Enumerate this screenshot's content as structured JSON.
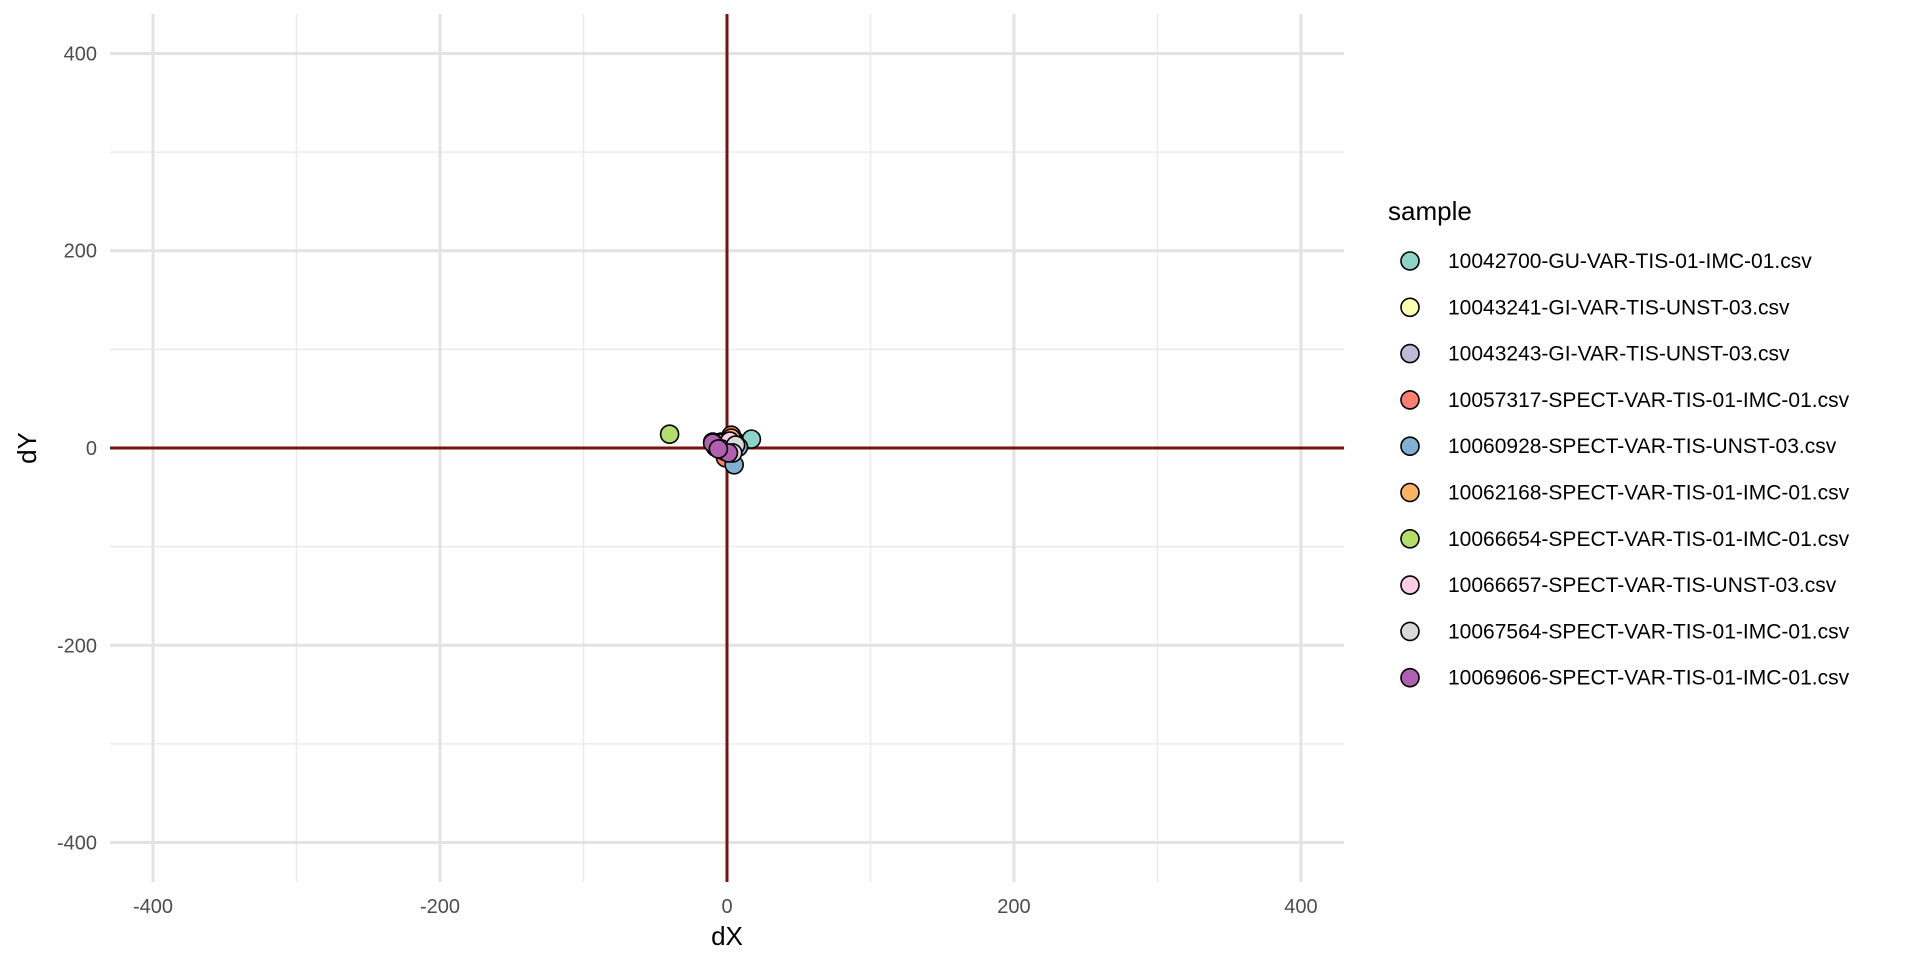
{
  "chart_data": {
    "type": "scatter",
    "title": "",
    "xlabel": "dX",
    "ylabel": "dY",
    "xlim": [
      -430,
      430
    ],
    "ylim": [
      -440,
      440
    ],
    "x_ticks": [
      -400,
      -200,
      0,
      200,
      400
    ],
    "y_ticks": [
      -400,
      -200,
      0,
      200,
      400
    ],
    "x_tick_labels": [
      "-400",
      "-200",
      "0",
      "200",
      "400"
    ],
    "y_tick_labels": [
      "-400",
      "-200",
      "0",
      "200",
      "400"
    ],
    "grid": true,
    "reference_lines": {
      "x": 0,
      "y": 0,
      "color": "#7b1010"
    },
    "legend": {
      "title": "sample",
      "position": "right"
    },
    "series": [
      {
        "name": "10042700-GU-VAR-TIS-01-IMC-01.csv",
        "color": "#8dd3c7",
        "points": [
          [
            17,
            9
          ],
          [
            2,
            3
          ],
          [
            -3,
            1
          ]
        ]
      },
      {
        "name": "10043241-GI-VAR-TIS-UNST-03.csv",
        "color": "#ffffb3",
        "points": [
          [
            -4,
            6
          ],
          [
            1,
            -4
          ],
          [
            -8,
            1
          ]
        ]
      },
      {
        "name": "10043243-GI-VAR-TIS-UNST-03.csv",
        "color": "#bebada",
        "points": [
          [
            -7,
            3
          ],
          [
            5,
            8
          ],
          [
            -1,
            -6
          ]
        ]
      },
      {
        "name": "10057317-SPECT-VAR-TIS-01-IMC-01.csv",
        "color": "#fb8072",
        "points": [
          [
            3,
            13
          ],
          [
            -1,
            -10
          ],
          [
            6,
            4
          ],
          [
            -3,
            2
          ]
        ]
      },
      {
        "name": "10060928-SPECT-VAR-TIS-UNST-03.csv",
        "color": "#80b1d3",
        "points": [
          [
            5,
            -17
          ],
          [
            8,
            1
          ],
          [
            -2,
            -3
          ]
        ]
      },
      {
        "name": "10062168-SPECT-VAR-TIS-01-IMC-01.csv",
        "color": "#fdb462",
        "points": [
          [
            3,
            10
          ],
          [
            -6,
            5
          ],
          [
            1,
            -2
          ]
        ]
      },
      {
        "name": "10066654-SPECT-VAR-TIS-01-IMC-01.csv",
        "color": "#b3de69",
        "points": [
          [
            -40,
            14
          ]
        ]
      },
      {
        "name": "10066657-SPECT-VAR-TIS-UNST-03.csv",
        "color": "#fccde5",
        "points": [
          [
            2,
            7
          ],
          [
            -4,
            -1
          ]
        ]
      },
      {
        "name": "10067564-SPECT-VAR-TIS-01-IMC-01.csv",
        "color": "#d9d9d9",
        "points": [
          [
            6,
            3
          ],
          [
            -10,
            6
          ],
          [
            4,
            -5
          ]
        ]
      },
      {
        "name": "10069606-SPECT-VAR-TIS-01-IMC-01.csv",
        "color": "#b15fb0",
        "points": [
          [
            -10,
            5
          ],
          [
            1,
            -5
          ],
          [
            -6,
            -1
          ]
        ]
      }
    ]
  }
}
